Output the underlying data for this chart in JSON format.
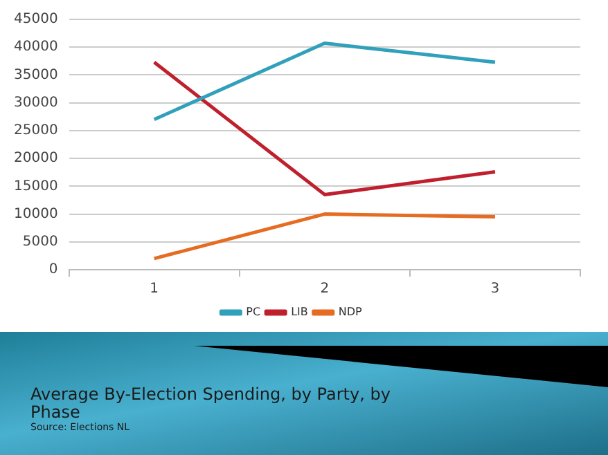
{
  "chart_data": {
    "type": "line",
    "title": "Average By-Election Spending, by Party, by Phase",
    "annotations": [
      "Source:  Elections NL"
    ],
    "categories": [
      "1",
      "2",
      "3"
    ],
    "series": [
      {
        "name": "PC",
        "color": "#31a0bb",
        "values": [
          27000,
          40700,
          37300
        ]
      },
      {
        "name": "LIB",
        "color": "#c0202e",
        "values": [
          37300,
          13500,
          17600
        ]
      },
      {
        "name": "NDP",
        "color": "#e56c22",
        "values": [
          2000,
          10000,
          9500
        ]
      }
    ],
    "ylim": [
      0,
      45000
    ],
    "yticks": [
      0,
      5000,
      10000,
      15000,
      20000,
      25000,
      30000,
      35000,
      40000,
      45000
    ],
    "grid": "y",
    "legend": "bottom",
    "marker": "none",
    "line_style": "solid"
  }
}
